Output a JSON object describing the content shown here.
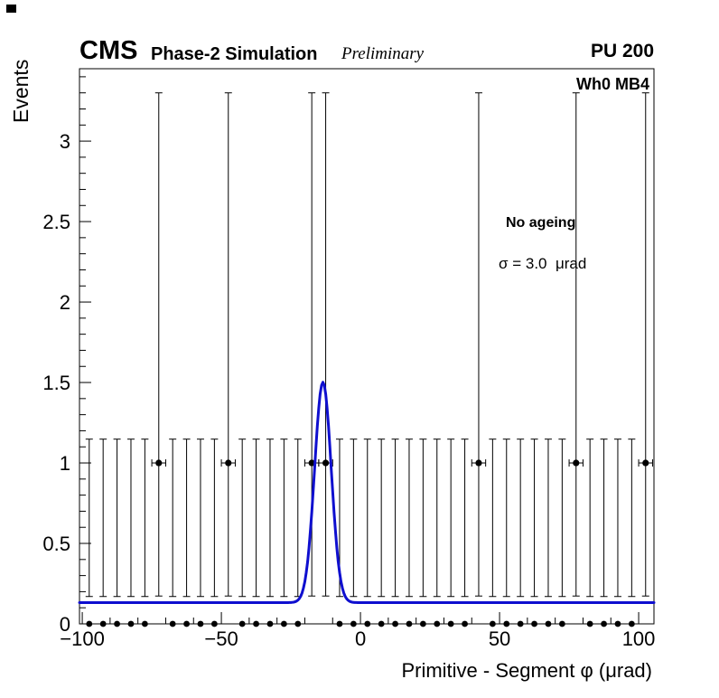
{
  "header": {
    "experiment": "CMS",
    "subtitle": "Phase-2 Simulation",
    "label": "Preliminary",
    "pileup": "PU 200"
  },
  "plot": {
    "region_label": "Wh0 MB4",
    "legend": {
      "line1": "No ageing",
      "line2": "σ = 3.0  μrad"
    }
  },
  "chart_data": {
    "type": "scatter",
    "title": "",
    "xlabel": "Primitive - Segment φ (μrad)",
    "ylabel": "Events",
    "xlim": [
      -101,
      105.5
    ],
    "ylim": [
      0,
      3.45
    ],
    "grid": false,
    "legend_position": "upper right inside",
    "x_ticks": [
      {
        "v": -100,
        "label": "−100"
      },
      {
        "v": -50,
        "label": "−50"
      },
      {
        "v": 0,
        "label": "0"
      },
      {
        "v": 50,
        "label": "50"
      },
      {
        "v": 100,
        "label": "100"
      }
    ],
    "x_minor_step": 10,
    "x_major_step": 50,
    "y_ticks": [
      {
        "v": 0,
        "label": "0"
      },
      {
        "v": 0.5,
        "label": "0.5"
      },
      {
        "v": 1,
        "label": "1"
      },
      {
        "v": 1.5,
        "label": "1.5"
      },
      {
        "v": 2,
        "label": "2"
      },
      {
        "v": 2.5,
        "label": "2.5"
      },
      {
        "v": 3,
        "label": "3"
      }
    ],
    "y_minor_step": 0.1,
    "marker_color": "#000000",
    "bin_width": 5,
    "series": [
      {
        "name": "bins-with-one-event",
        "y": 1,
        "x": [
          -72.5,
          -47.5,
          -17.5,
          -12.5,
          42.5,
          77.5,
          102.5
        ],
        "err_low": 0.827,
        "err_high": 2.3,
        "x_err": 2.5
      },
      {
        "name": "empty-bins",
        "y": 0,
        "x": [
          -97.5,
          -92.5,
          -87.5,
          -82.5,
          -77.5,
          -67.5,
          -62.5,
          -57.5,
          -52.5,
          -42.5,
          -37.5,
          -32.5,
          -27.5,
          -22.5,
          -7.5,
          -2.5,
          2.5,
          7.5,
          12.5,
          17.5,
          22.5,
          27.5,
          32.5,
          37.5,
          47.5,
          52.5,
          57.5,
          62.5,
          67.5,
          72.5,
          82.5,
          87.5,
          92.5,
          97.5
        ],
        "bar_low": 0.17,
        "bar_high": 1.148
      }
    ],
    "fit": {
      "type": "gaussian_plus_const",
      "baseline": 0.132,
      "amplitude": 1.37,
      "mean": -13.5,
      "sigma": 3.0,
      "peak": 1.5,
      "color": "#0f0fcf",
      "width": 3
    }
  }
}
